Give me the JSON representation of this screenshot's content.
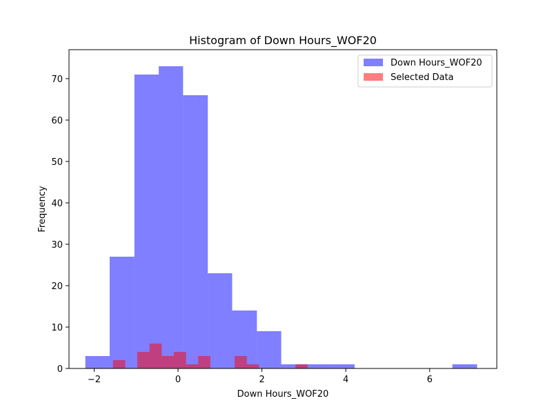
{
  "chart_data": {
    "type": "histogram",
    "title": "Histogram of Down Hours_WOF20",
    "xlabel": "Down Hours_WOF20",
    "ylabel": "Frequency",
    "xlim": [
      -2.6,
      7.6
    ],
    "ylim": [
      0,
      77
    ],
    "x_ticks": [
      -2,
      0,
      2,
      4,
      6
    ],
    "x_tick_labels": [
      "−2",
      "0",
      "2",
      "4",
      "6"
    ],
    "y_ticks": [
      0,
      10,
      20,
      30,
      40,
      50,
      60,
      70
    ],
    "y_tick_labels": [
      "0",
      "10",
      "20",
      "30",
      "40",
      "50",
      "60",
      "70"
    ],
    "grid": false,
    "legend_position": "top-right",
    "series": [
      {
        "name": "Down Hours_WOF20",
        "color": "#0000ff",
        "alpha": 0.5,
        "bins": [
          {
            "x0": -2.21,
            "x1": -1.63,
            "count": 3
          },
          {
            "x0": -1.63,
            "x1": -1.04,
            "count": 27
          },
          {
            "x0": -1.04,
            "x1": -0.46,
            "count": 71
          },
          {
            "x0": -0.46,
            "x1": 0.12,
            "count": 73
          },
          {
            "x0": 0.12,
            "x1": 0.71,
            "count": 66
          },
          {
            "x0": 0.71,
            "x1": 1.29,
            "count": 23
          },
          {
            "x0": 1.29,
            "x1": 1.88,
            "count": 14
          },
          {
            "x0": 1.88,
            "x1": 2.46,
            "count": 9
          },
          {
            "x0": 2.46,
            "x1": 3.04,
            "count": 1
          },
          {
            "x0": 3.04,
            "x1": 3.63,
            "count": 1
          },
          {
            "x0": 3.63,
            "x1": 4.21,
            "count": 1
          },
          {
            "x0": 4.21,
            "x1": 4.79,
            "count": 0
          },
          {
            "x0": 4.79,
            "x1": 5.38,
            "count": 0
          },
          {
            "x0": 5.38,
            "x1": 5.96,
            "count": 0
          },
          {
            "x0": 5.96,
            "x1": 6.54,
            "count": 0
          },
          {
            "x0": 6.54,
            "x1": 7.13,
            "count": 1
          }
        ]
      },
      {
        "name": "Selected Data",
        "color": "#ff0000",
        "alpha": 0.5,
        "bins": [
          {
            "x0": -1.55,
            "x1": -1.26,
            "count": 2
          },
          {
            "x0": -1.26,
            "x1": -0.97,
            "count": 0
          },
          {
            "x0": -0.97,
            "x1": -0.68,
            "count": 4
          },
          {
            "x0": -0.68,
            "x1": -0.39,
            "count": 6
          },
          {
            "x0": -0.39,
            "x1": -0.1,
            "count": 3
          },
          {
            "x0": -0.1,
            "x1": 0.19,
            "count": 4
          },
          {
            "x0": 0.19,
            "x1": 0.48,
            "count": 1
          },
          {
            "x0": 0.48,
            "x1": 0.77,
            "count": 3
          },
          {
            "x0": 0.77,
            "x1": 1.06,
            "count": 0
          },
          {
            "x0": 1.06,
            "x1": 1.35,
            "count": 0
          },
          {
            "x0": 1.35,
            "x1": 1.64,
            "count": 3
          },
          {
            "x0": 1.64,
            "x1": 1.93,
            "count": 1
          },
          {
            "x0": 1.93,
            "x1": 2.22,
            "count": 0
          },
          {
            "x0": 2.22,
            "x1": 2.51,
            "count": 0
          },
          {
            "x0": 2.51,
            "x1": 2.8,
            "count": 0
          },
          {
            "x0": 2.8,
            "x1": 3.09,
            "count": 1
          }
        ]
      }
    ]
  }
}
